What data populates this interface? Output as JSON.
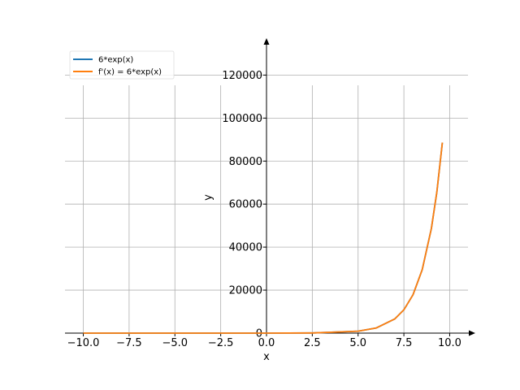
{
  "chart_data": {
    "type": "line",
    "xlabel": "x",
    "ylabel": "y",
    "xlim": [
      -11.0,
      11.0
    ],
    "ylim": [
      0,
      133000
    ],
    "grid": true,
    "legend_position": "top-left",
    "x_ticks": [
      -10.0,
      -7.5,
      -5.0,
      -2.5,
      0.0,
      2.5,
      5.0,
      7.5,
      10.0
    ],
    "x_tick_labels": [
      "−10.0",
      "−7.5",
      "−5.0",
      "−2.5",
      "0.0",
      "2.5",
      "5.0",
      "7.5",
      "10.0"
    ],
    "y_ticks": [
      0,
      20000,
      40000,
      60000,
      80000,
      100000,
      120000
    ],
    "y_tick_labels": [
      "0",
      "20000",
      "40000",
      "60000",
      "80000",
      "100000",
      "120000"
    ],
    "series": [
      {
        "name": "6*exp(x)",
        "color": "#1f77b4",
        "x": [
          -10,
          -7.5,
          -5,
          -2.5,
          0,
          2.5,
          5,
          6,
          7,
          7.5,
          8,
          8.5,
          9,
          9.3,
          9.6
        ],
        "y": [
          0.0003,
          0.0033,
          0.04,
          0.49,
          6,
          73,
          890,
          2421,
          6580,
          10848,
          17886,
          29490,
          48619,
          65629,
          88593
        ]
      },
      {
        "name": "f'(x) = 6*exp(x)",
        "color": "#ff7f0e",
        "x": [
          -10,
          -7.5,
          -5,
          -2.5,
          0,
          2.5,
          5,
          6,
          7,
          7.5,
          8,
          8.5,
          9,
          9.3,
          9.6
        ],
        "y": [
          0.0003,
          0.0033,
          0.04,
          0.49,
          6,
          73,
          890,
          2421,
          6580,
          10848,
          17886,
          29490,
          48619,
          65629,
          88593
        ]
      }
    ]
  }
}
